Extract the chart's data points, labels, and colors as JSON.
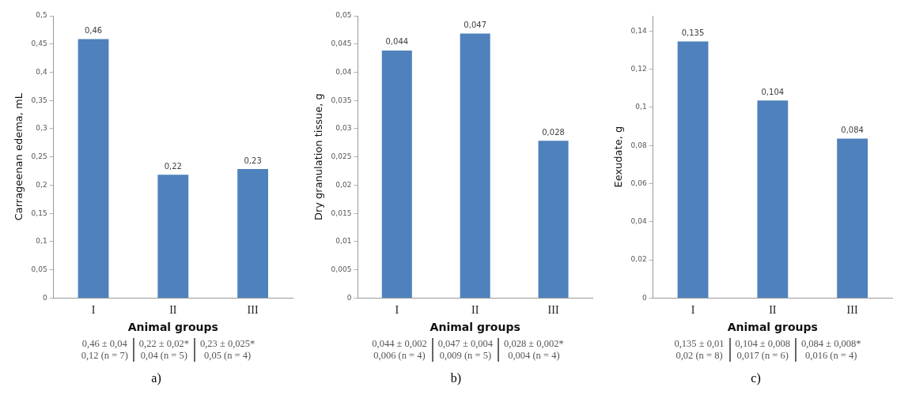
{
  "chart_data": [
    {
      "type": "bar",
      "xlabel": "Animal groups",
      "ylabel": "Carrageenan edema, mL",
      "categories": [
        "I",
        "II",
        "III"
      ],
      "values": [
        0.46,
        0.22,
        0.23
      ],
      "value_labels": [
        "0,46",
        "0,22",
        "0,23"
      ],
      "color": "#4f81bd",
      "ylim": [
        0,
        0.5
      ],
      "yticks": [
        {
          "value": 0,
          "label": "0"
        },
        {
          "value": 0.05,
          "label": "0,05"
        },
        {
          "value": 0.1,
          "label": "0,1"
        },
        {
          "value": 0.15,
          "label": "0,15"
        },
        {
          "value": 0.2,
          "label": "0,2"
        },
        {
          "value": 0.25,
          "label": "0,25"
        },
        {
          "value": 0.3,
          "label": "0,3"
        },
        {
          "value": 0.35,
          "label": "0,35"
        },
        {
          "value": 0.4,
          "label": "0,4"
        },
        {
          "value": 0.45,
          "label": "0,45"
        },
        {
          "value": 0.5,
          "label": "0,5"
        }
      ],
      "grid": false,
      "legend": false,
      "annotations": [
        "0,46 ± 0,04\n0,12 (n = 7)",
        "0,22 ± 0,02*\n0,04 (n = 5)",
        "0,23 ± 0,025*\n0,05 (n = 4)",
        "a)"
      ]
    },
    {
      "type": "bar",
      "xlabel": "Animal groups",
      "ylabel": "Dry granulation tissue, g",
      "categories": [
        "I",
        "II",
        "III"
      ],
      "values": [
        0.044,
        0.047,
        0.028
      ],
      "value_labels": [
        "0,044",
        "0,047",
        "0,028"
      ],
      "color": "#4f81bd",
      "ylim": [
        0,
        0.05
      ],
      "yticks": [
        {
          "value": 0,
          "label": "0"
        },
        {
          "value": 0.005,
          "label": "0,005"
        },
        {
          "value": 0.01,
          "label": "0,01"
        },
        {
          "value": 0.015,
          "label": "0,015"
        },
        {
          "value": 0.02,
          "label": "0,02"
        },
        {
          "value": 0.025,
          "label": "0,025"
        },
        {
          "value": 0.03,
          "label": "0,03"
        },
        {
          "value": 0.035,
          "label": "0,035"
        },
        {
          "value": 0.04,
          "label": "0,04"
        },
        {
          "value": 0.045,
          "label": "0,045"
        },
        {
          "value": 0.05,
          "label": "0,05"
        }
      ],
      "grid": false,
      "legend": false,
      "annotations": [
        "0,044 ± 0,002\n0,006 (n = 4)",
        "0,047 ± 0,004\n0,009 (n = 5)",
        "0,028 ± 0,002*\n0,004 (n = 4)",
        "b)"
      ]
    },
    {
      "type": "bar",
      "xlabel": "Animal groups",
      "ylabel": "Eexudate, g",
      "categories": [
        "I",
        "II",
        "III"
      ],
      "values": [
        0.135,
        0.104,
        0.084
      ],
      "value_labels": [
        "0,135",
        "0,104",
        "0,084"
      ],
      "color": "#4f81bd",
      "ylim": [
        0,
        0.148
      ],
      "yticks": [
        {
          "value": 0,
          "label": "0"
        },
        {
          "value": 0.02,
          "label": "0,02"
        },
        {
          "value": 0.04,
          "label": "0,04"
        },
        {
          "value": 0.06,
          "label": "0,06"
        },
        {
          "value": 0.08,
          "label": "0,08"
        },
        {
          "value": 0.1,
          "label": "0,1"
        },
        {
          "value": 0.12,
          "label": "0,12"
        },
        {
          "value": 0.14,
          "label": "0,14"
        }
      ],
      "grid": false,
      "legend": false,
      "annotations": [
        "0,135 ± 0,01\n0,02 (n = 8)",
        "0,104 ± 0,008\n0,017 (n = 6)",
        "0,084 ± 0,008*\n0,016 (n = 4)",
        "c)"
      ]
    }
  ]
}
